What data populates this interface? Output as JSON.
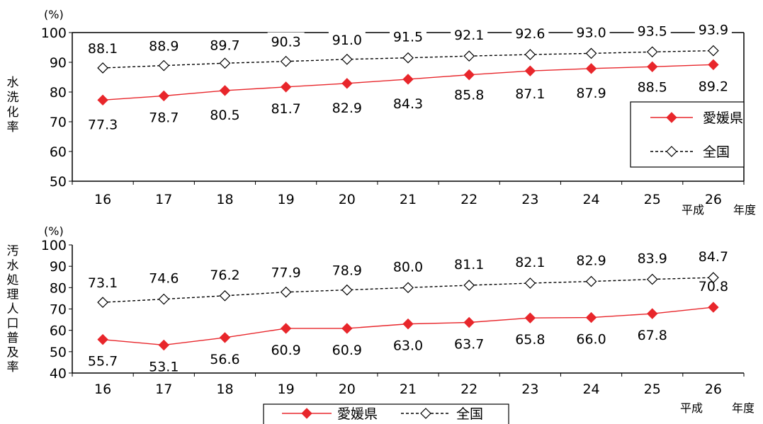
{
  "chart_data": [
    {
      "type": "line",
      "unit_label": "(%)",
      "ylabel": "水洗化率",
      "categories": [
        "16",
        "17",
        "18",
        "19",
        "20",
        "21",
        "22",
        "23",
        "24",
        "25",
        "26"
      ],
      "era_label": "平成",
      "x_suffix": "年度",
      "ylim": [
        50,
        100
      ],
      "yticks": [
        50,
        60,
        70,
        80,
        90,
        100
      ],
      "grid": false,
      "legend_position": "right",
      "series": [
        {
          "name": "愛媛県",
          "color": "#e8262b",
          "marker": "filled-diamond",
          "line": "solid",
          "values": [
            77.3,
            78.7,
            80.5,
            81.7,
            82.9,
            84.3,
            85.8,
            87.1,
            87.9,
            88.5,
            89.2
          ],
          "labels": [
            "77.3",
            "78.7",
            "80.5",
            "81.7",
            "82.9",
            "84.3",
            "85.8",
            "87.1",
            "87.9",
            "88.5",
            "89.2"
          ]
        },
        {
          "name": "全国",
          "color": "#000000",
          "marker": "hollow-diamond",
          "line": "dashed",
          "values": [
            88.1,
            88.9,
            89.7,
            90.3,
            91.0,
            91.5,
            92.1,
            92.6,
            93.0,
            93.5,
            93.9
          ],
          "labels": [
            "88.1",
            "88.9",
            "89.7",
            "90.3",
            "91.0",
            "91.5",
            "92.1",
            "92.6",
            "93.0",
            "93.5",
            "93.9"
          ]
        }
      ]
    },
    {
      "type": "line",
      "unit_label": "(%)",
      "ylabel": "汚水処理人口普及率",
      "categories": [
        "16",
        "17",
        "18",
        "19",
        "20",
        "21",
        "22",
        "23",
        "24",
        "25",
        "26"
      ],
      "era_label": "平成",
      "x_suffix": "年度",
      "ylim": [
        40,
        100
      ],
      "yticks": [
        40,
        50,
        60,
        70,
        80,
        90,
        100
      ],
      "grid": false,
      "legend_position": "bottom",
      "series": [
        {
          "name": "愛媛県",
          "color": "#e8262b",
          "marker": "filled-diamond",
          "line": "solid",
          "values": [
            55.7,
            53.1,
            56.6,
            60.9,
            60.9,
            63.0,
            63.7,
            65.8,
            66.0,
            67.8,
            70.8
          ],
          "labels": [
            "55.7",
            "53.1",
            "56.6",
            "60.9",
            "60.9",
            "63.0",
            "63.7",
            "65.8",
            "66.0",
            "67.8",
            "70.8"
          ]
        },
        {
          "name": "全国",
          "color": "#000000",
          "marker": "hollow-diamond",
          "line": "dashed",
          "values": [
            73.1,
            74.6,
            76.2,
            77.9,
            78.9,
            80.0,
            81.1,
            82.1,
            82.9,
            83.9,
            84.7
          ],
          "labels": [
            "73.1",
            "74.6",
            "76.2",
            "77.9",
            "78.9",
            "80.0",
            "81.1",
            "82.1",
            "82.9",
            "83.9",
            "84.7"
          ]
        }
      ]
    }
  ]
}
